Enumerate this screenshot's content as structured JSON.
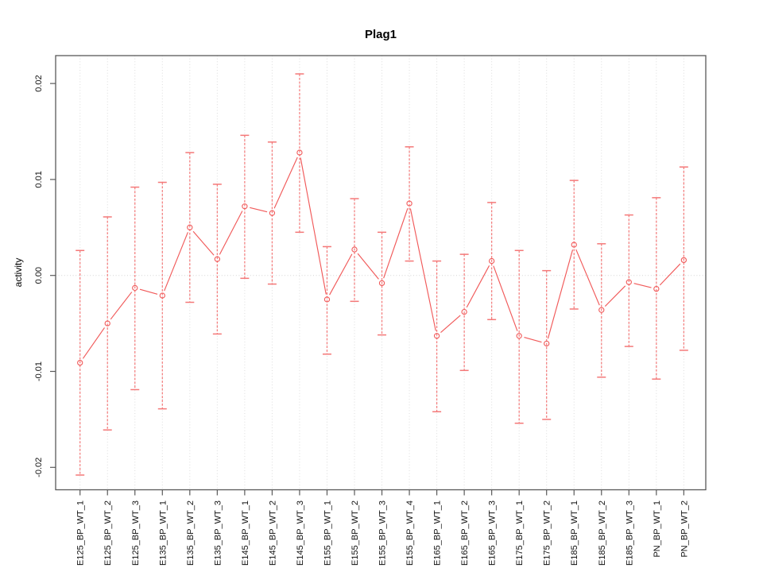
{
  "title": "Plag1",
  "chart_data": {
    "type": "scatter",
    "title": "Plag1",
    "xlabel": "",
    "ylabel": "activity",
    "ylim": [
      -0.022,
      0.023
    ],
    "yticks": [
      0.02,
      0.01,
      0.0,
      -0.01,
      -0.02
    ],
    "ytick_labels": [
      "0.02",
      "0.01",
      "0.00",
      "-0.01",
      "-0.02"
    ],
    "grid": "dotted vertical gridline at every category; dotted horizontal line at y=0",
    "legend_position": "none",
    "marker": "open-circle",
    "line_style": "segments between points with gaps at markers (R type='b')",
    "error_bars": true,
    "categories": [
      "E125_BP_WT_1",
      "E125_BP_WT_2",
      "E125_BP_WT_3",
      "E135_BP_WT_1",
      "E135_BP_WT_2",
      "E135_BP_WT_3",
      "E145_BP_WT_1",
      "E145_BP_WT_2",
      "E145_BP_WT_3",
      "E155_BP_WT_1",
      "E155_BP_WT_2",
      "E155_BP_WT_3",
      "E155_BP_WT_4",
      "E165_BP_WT_1",
      "E165_BP_WT_2",
      "E165_BP_WT_3",
      "E175_BP_WT_1",
      "E175_BP_WT_2",
      "E185_BP_WT_1",
      "E185_BP_WT_2",
      "E185_BP_WT_3",
      "PN_BP_WT_1",
      "PN_BP_WT_2"
    ],
    "series": [
      {
        "name": "activity",
        "values": [
          -0.0091,
          -0.005,
          -0.0013,
          -0.0021,
          0.005,
          0.0017,
          0.0072,
          0.0065,
          0.0128,
          -0.0025,
          0.0027,
          -0.0008,
          0.0075,
          -0.0063,
          -0.0038,
          0.0015,
          -0.0063,
          -0.0071,
          0.0032,
          -0.0036,
          -0.0007,
          -0.0014,
          0.0016
        ],
        "lower": [
          -0.0208,
          -0.0161,
          -0.0119,
          -0.0139,
          -0.0028,
          -0.0061,
          -0.0003,
          -0.0009,
          0.0045,
          -0.0082,
          -0.0027,
          -0.0062,
          0.0015,
          -0.0142,
          -0.0099,
          -0.0046,
          -0.0154,
          -0.015,
          -0.0035,
          -0.0106,
          -0.0074,
          -0.0108,
          -0.0078
        ],
        "upper": [
          0.0026,
          0.0061,
          0.0092,
          0.0097,
          0.0128,
          0.0095,
          0.0146,
          0.0139,
          0.021,
          0.003,
          0.008,
          0.0045,
          0.0134,
          0.0015,
          0.0022,
          0.0076,
          0.0026,
          0.0005,
          0.0099,
          0.0033,
          0.0063,
          0.0081,
          0.0113
        ]
      }
    ],
    "colors": {
      "series_line": "#f15a5a",
      "marker_stroke": "#f15a5a",
      "error_bar": "#f47878",
      "gridline": "#dcdcdc",
      "zero_line": "#d4d4d4",
      "axis_box": "#595959",
      "tick": "#595959",
      "text": "#000000",
      "background": "#ffffff"
    }
  }
}
